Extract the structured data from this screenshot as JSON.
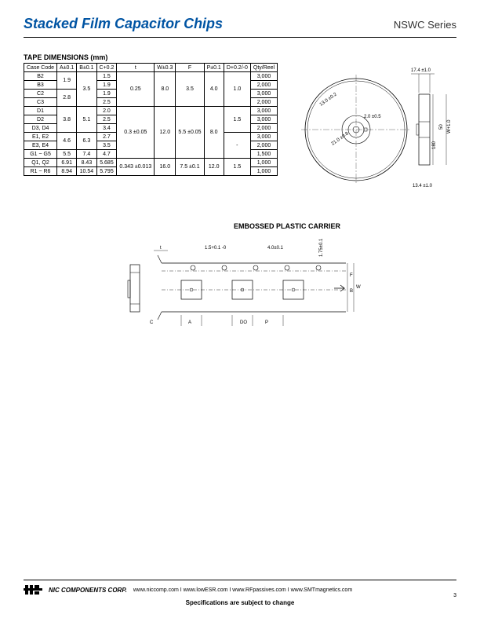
{
  "header": {
    "title": "Stacked Film Capacitor Chips",
    "series": "NSWC Series"
  },
  "table": {
    "title": "TAPE DIMENSIONS (mm)",
    "columns": [
      "Case Code",
      "A±0.1",
      "B±0.1",
      "C+0.2",
      "t",
      "W±0.3",
      "F",
      "P±0.1",
      "D+0.2/-0",
      "Qty/Reel"
    ],
    "rows": [
      {
        "case": "B2",
        "a": "1.9",
        "a_span": 2,
        "b": "3.5",
        "b_span": 4,
        "c": "1.5",
        "t": "0.25",
        "t_span": 4,
        "w": "8.0",
        "w_span": 4,
        "f": "3.5",
        "f_span": 4,
        "p": "4.0",
        "p_span": 4,
        "d": "1.0",
        "d_span": 4,
        "qty": "3,000"
      },
      {
        "case": "B3",
        "c": "1.9",
        "qty": "2,000"
      },
      {
        "case": "C2",
        "a": "2.8",
        "a_span": 2,
        "c": "1.9",
        "qty": "3,000"
      },
      {
        "case": "C3",
        "c": "2.5",
        "qty": "2,000"
      },
      {
        "case": "D1",
        "a": "3.8",
        "a_span": 3,
        "b": "5.1",
        "b_span": 3,
        "c": "2.0",
        "t": "0.3 ±0.05",
        "t_span": 6,
        "w": "12.0",
        "w_span": 6,
        "f": "5.5 ±0.05",
        "f_span": 6,
        "p": "8.0",
        "p_span": 6,
        "d": "1.5",
        "d_span": 3,
        "qty": "3,000"
      },
      {
        "case": "D2",
        "c": "2.5",
        "qty": "3,000"
      },
      {
        "case": "D3, D4",
        "c": "3.4",
        "qty": "2,000"
      },
      {
        "case": "E1, E2",
        "a": "4.6",
        "a_span": 2,
        "b": "6.3",
        "b_span": 2,
        "c": "2.7",
        "d": "-",
        "d_span": 3,
        "qty": "3,000"
      },
      {
        "case": "E3, E4",
        "c": "3.5",
        "qty": "2,000"
      },
      {
        "case": "G1 ~ G5",
        "a": "5.5",
        "b": "7.4",
        "c": "4.7",
        "qty": "1,500"
      },
      {
        "case": "Q1, Q2",
        "a": "6.91",
        "b": "8.43",
        "c": "5.685",
        "t": "0.343 ±0.013",
        "t_span": 2,
        "w": "16.0",
        "w_span": 2,
        "f": "7.5 ±0.1",
        "f_span": 2,
        "p": "12.0",
        "p_span": 2,
        "d": "1.5",
        "d_span": 2,
        "qty": "1,000"
      },
      {
        "case": "R1 ~ R6",
        "a": "8.94",
        "b": "10.54",
        "c": "5.795",
        "qty": "1,000"
      }
    ]
  },
  "reel": {
    "dim_top": "17.4 ±1.0",
    "dim_right": "W+1.0",
    "dim_angle1": "13.0 ±0.2",
    "dim_angle2": "2.0 ±0.5",
    "dim_inner": "21.0 ±0.8",
    "dim_bottom": "13.4 ±1.0",
    "dim_height": "50",
    "dim_outer": "180"
  },
  "carrier": {
    "title": "EMBOSSED PLASTIC CARRIER",
    "dim_t": "t",
    "dim_15": "1.5+0.1 -0",
    "dim_40": "4.0±0.1",
    "dim_175": "1.75±0.1",
    "dim_a": "A",
    "dim_b": "B",
    "dim_c": "C",
    "dim_do": "DO",
    "dim_p": "P",
    "dim_w": "W",
    "dim_f": "F"
  },
  "footer": {
    "corp": "NIC COMPONENTS CORP.",
    "links": "www.niccomp.com  I  www.lowESR.com  I  www.RFpassives.com  I  www.SMTmagnetics.com",
    "note": "Specifications are subject to change",
    "page": "3"
  }
}
